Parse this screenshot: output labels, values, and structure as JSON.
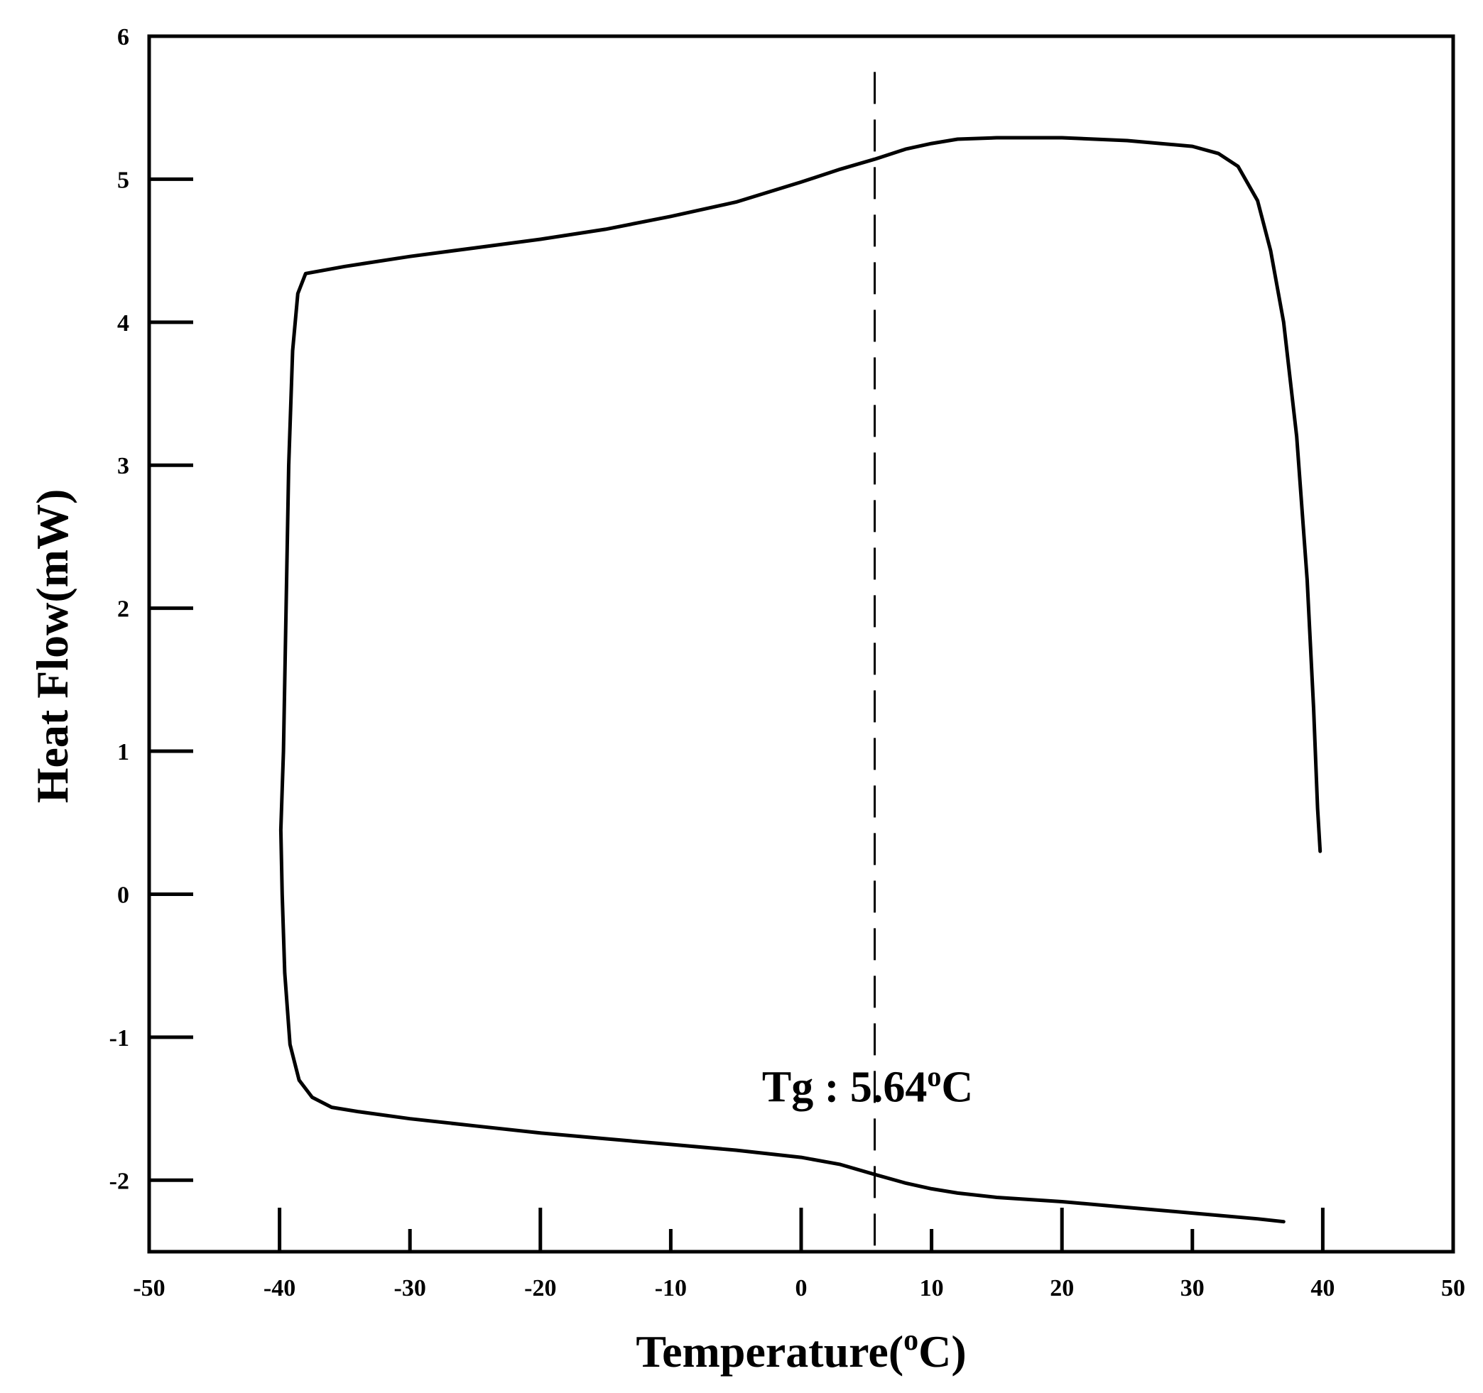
{
  "chart_data": {
    "type": "line",
    "title": "",
    "xlabel": "Temperature(",
    "xlabel_superscript": "o",
    "xlabel_suffix": "C)",
    "ylabel": "Heat Flow(mW)",
    "xlim": [
      -50,
      50
    ],
    "ylim": [
      -2.5,
      6
    ],
    "x_ticks": [
      -50,
      -40,
      -30,
      -20,
      -10,
      0,
      10,
      20,
      30,
      40,
      50
    ],
    "y_ticks": [
      6,
      5,
      4,
      3,
      2,
      1,
      0,
      -1,
      -2
    ],
    "x_tick_labels": [
      "-50",
      "-40",
      "-30",
      "-20",
      "-10",
      "0",
      "10",
      "20",
      "30",
      "40",
      "50"
    ],
    "y_tick_labels": [
      "6",
      "5",
      "4",
      "3",
      "2",
      "1",
      "0",
      "-1",
      "-2"
    ],
    "grid": false,
    "legend": "none",
    "line_color": "#000000",
    "series": [
      {
        "points": [
          [
            37.0,
            -2.29
          ],
          [
            35.0,
            -2.27
          ],
          [
            30.0,
            -2.23
          ],
          [
            25.0,
            -2.19
          ],
          [
            20.0,
            -2.15
          ],
          [
            15.0,
            -2.12
          ],
          [
            12.0,
            -2.09
          ],
          [
            10.0,
            -2.06
          ],
          [
            8.0,
            -2.02
          ],
          [
            5.64,
            -1.96
          ],
          [
            3.0,
            -1.89
          ],
          [
            0.0,
            -1.84
          ],
          [
            -5.0,
            -1.79
          ],
          [
            -10.0,
            -1.75
          ],
          [
            -15.0,
            -1.71
          ],
          [
            -20.0,
            -1.67
          ],
          [
            -25.0,
            -1.62
          ],
          [
            -30.0,
            -1.57
          ],
          [
            -34.0,
            -1.52
          ],
          [
            -36.0,
            -1.49
          ],
          [
            -37.5,
            -1.42
          ],
          [
            -38.5,
            -1.3
          ],
          [
            -39.2,
            -1.05
          ],
          [
            -39.6,
            -0.55
          ],
          [
            -39.8,
            0.0
          ],
          [
            -39.9,
            0.45
          ],
          [
            -39.7,
            1.0
          ],
          [
            -39.5,
            2.0
          ],
          [
            -39.3,
            3.0
          ],
          [
            -39.0,
            3.8
          ],
          [
            -38.6,
            4.2
          ],
          [
            -38.0,
            4.34
          ],
          [
            -35.0,
            4.39
          ],
          [
            -30.0,
            4.46
          ],
          [
            -25.0,
            4.52
          ],
          [
            -20.0,
            4.58
          ],
          [
            -15.0,
            4.65
          ],
          [
            -10.0,
            4.74
          ],
          [
            -5.0,
            4.84
          ],
          [
            0.0,
            4.98
          ],
          [
            3.0,
            5.07
          ],
          [
            5.64,
            5.14
          ],
          [
            8.0,
            5.21
          ],
          [
            10.0,
            5.25
          ],
          [
            12.0,
            5.28
          ],
          [
            15.0,
            5.29
          ],
          [
            20.0,
            5.29
          ],
          [
            25.0,
            5.27
          ],
          [
            30.0,
            5.23
          ],
          [
            32.0,
            5.18
          ],
          [
            33.5,
            5.09
          ],
          [
            35.0,
            4.85
          ],
          [
            36.0,
            4.5
          ],
          [
            37.0,
            4.0
          ],
          [
            38.0,
            3.2
          ],
          [
            38.8,
            2.2
          ],
          [
            39.3,
            1.3
          ],
          [
            39.6,
            0.6
          ],
          [
            39.8,
            0.3
          ]
        ]
      }
    ],
    "reference_line": {
      "x": 5.64,
      "style": "dashed",
      "y_from": -2.5,
      "y_to": 5.75
    },
    "annotation": {
      "prefix": "Tg : 5.64",
      "superscript": "o",
      "suffix": "C",
      "x": 5.64,
      "y": -1.45
    }
  }
}
